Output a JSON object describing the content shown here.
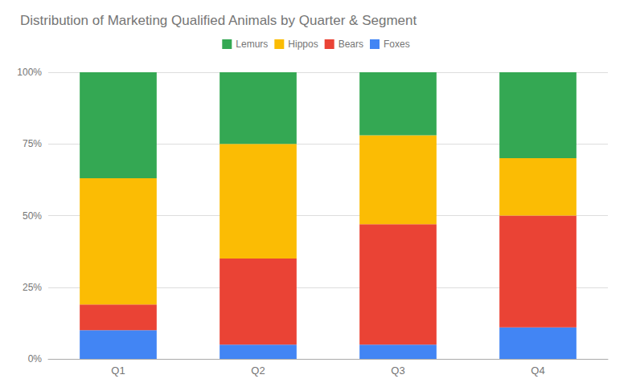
{
  "chart_data": {
    "type": "bar",
    "title": "Distribution of Marketing Qualified Animals by Quarter & Segment",
    "categories": [
      "Q1",
      "Q2",
      "Q3",
      "Q4"
    ],
    "stacked": true,
    "series": [
      {
        "name": "Foxes",
        "color": "#4285F4",
        "values": [
          0.1,
          0.05,
          0.05,
          0.11
        ]
      },
      {
        "name": "Bears",
        "color": "#EA4335",
        "values": [
          0.09,
          0.3,
          0.42,
          0.39
        ]
      },
      {
        "name": "Hippos",
        "color": "#FBBC04",
        "values": [
          0.44,
          0.4,
          0.31,
          0.2
        ]
      },
      {
        "name": "Lemurs",
        "color": "#34A853",
        "values": [
          0.37,
          0.25,
          0.22,
          0.3
        ]
      }
    ],
    "ylim": [
      0,
      1
    ],
    "yticks": [
      {
        "value": 0,
        "label": "0%"
      },
      {
        "value": 0.25,
        "label": "25%"
      },
      {
        "value": 0.5,
        "label": "50%"
      },
      {
        "value": 0.75,
        "label": "75%"
      },
      {
        "value": 1.0,
        "label": "100%"
      }
    ],
    "grid": true,
    "legend": "top"
  }
}
